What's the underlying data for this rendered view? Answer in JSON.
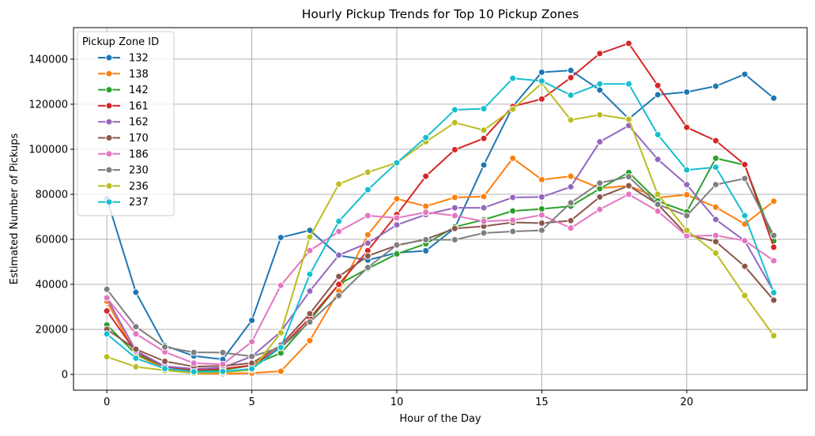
{
  "chart_data": {
    "type": "line",
    "title": "Hourly Pickup Trends for Top 10 Pickup Zones",
    "xlabel": "Hour of the Day",
    "ylabel": "Estimated Number of Pickups",
    "xlim": [
      -1.15,
      24.15
    ],
    "ylim": [
      -7000,
      154000
    ],
    "xticks": [
      0,
      5,
      10,
      15,
      20
    ],
    "yticks": [
      0,
      20000,
      40000,
      60000,
      80000,
      100000,
      120000,
      140000
    ],
    "grid": true,
    "legend": {
      "title": "Pickup Zone ID",
      "position": "top-left"
    },
    "x": [
      0,
      1,
      2,
      3,
      4,
      5,
      6,
      7,
      8,
      9,
      10,
      11,
      12,
      13,
      14,
      15,
      16,
      17,
      18,
      19,
      20,
      21,
      22,
      23
    ],
    "series": [
      {
        "name": "132",
        "color": "#1f77b4",
        "values": [
          78000,
          36500,
          12800,
          8200,
          6700,
          24000,
          60800,
          64000,
          52800,
          50800,
          54000,
          54900,
          65000,
          93000,
          119000,
          134200,
          135000,
          126300,
          113500,
          124200,
          125400,
          128000,
          133300,
          122700
        ]
      },
      {
        "name": "138",
        "color": "#ff7f0e",
        "values": [
          32500,
          8800,
          2500,
          400,
          300,
          600,
          1400,
          15000,
          37000,
          62000,
          78000,
          74700,
          78600,
          79000,
          96000,
          86500,
          88000,
          82700,
          83800,
          78500,
          79800,
          74300,
          66800,
          76900
        ]
      },
      {
        "name": "142",
        "color": "#2ca02c",
        "values": [
          22000,
          9000,
          3500,
          1500,
          2000,
          4000,
          9500,
          24000,
          40000,
          47000,
          53500,
          58000,
          65500,
          68700,
          72600,
          73500,
          74700,
          82500,
          89700,
          77000,
          72200,
          96000,
          93000,
          59300
        ]
      },
      {
        "name": "161",
        "color": "#d62728",
        "values": [
          28200,
          10000,
          3500,
          2000,
          2500,
          4000,
          12000,
          25000,
          40000,
          55000,
          71000,
          88000,
          99800,
          104800,
          119000,
          122300,
          131800,
          142500,
          147000,
          128300,
          109700,
          103800,
          93200,
          56500
        ]
      },
      {
        "name": "162",
        "color": "#9467bd",
        "values": [
          34000,
          10500,
          3600,
          2500,
          3000,
          8000,
          19000,
          37000,
          53000,
          58300,
          66400,
          71000,
          74000,
          74000,
          78600,
          78800,
          83300,
          103300,
          110500,
          95500,
          84300,
          68800,
          59300,
          36800
        ]
      },
      {
        "name": "170",
        "color": "#8c564b",
        "values": [
          20000,
          11200,
          5800,
          3500,
          3800,
          5000,
          13000,
          27000,
          43500,
          52600,
          57300,
          60000,
          64800,
          65800,
          67500,
          67200,
          68300,
          78800,
          83800,
          75600,
          62000,
          59000,
          48000,
          33000
        ]
      },
      {
        "name": "186",
        "color": "#e377c2",
        "values": [
          34000,
          18000,
          10000,
          5000,
          4500,
          14500,
          39500,
          55000,
          63500,
          70500,
          69500,
          72000,
          70500,
          68000,
          68500,
          70800,
          65000,
          73300,
          80000,
          72500,
          61500,
          61700,
          59400,
          50500
        ]
      },
      {
        "name": "230",
        "color": "#7f7f7f",
        "values": [
          37800,
          21200,
          12200,
          9800,
          9700,
          8000,
          12000,
          23300,
          35000,
          47500,
          57500,
          59800,
          59800,
          62800,
          63500,
          64000,
          76200,
          85000,
          87800,
          75500,
          70500,
          84300,
          87000,
          61700
        ]
      },
      {
        "name": "236",
        "color": "#bcbd22",
        "values": [
          7800,
          3400,
          1800,
          600,
          900,
          2000,
          18500,
          61000,
          84500,
          89800,
          94000,
          103300,
          111800,
          108500,
          117800,
          129300,
          113000,
          115300,
          113300,
          80000,
          64000,
          53900,
          35000,
          17200
        ]
      },
      {
        "name": "237",
        "color": "#17becf",
        "values": [
          18000,
          7200,
          2600,
          1200,
          1300,
          2500,
          12000,
          44500,
          68000,
          82000,
          94000,
          105200,
          117500,
          118000,
          131500,
          130300,
          124000,
          129000,
          129000,
          106500,
          90800,
          92000,
          70500,
          36300
        ]
      }
    ]
  }
}
